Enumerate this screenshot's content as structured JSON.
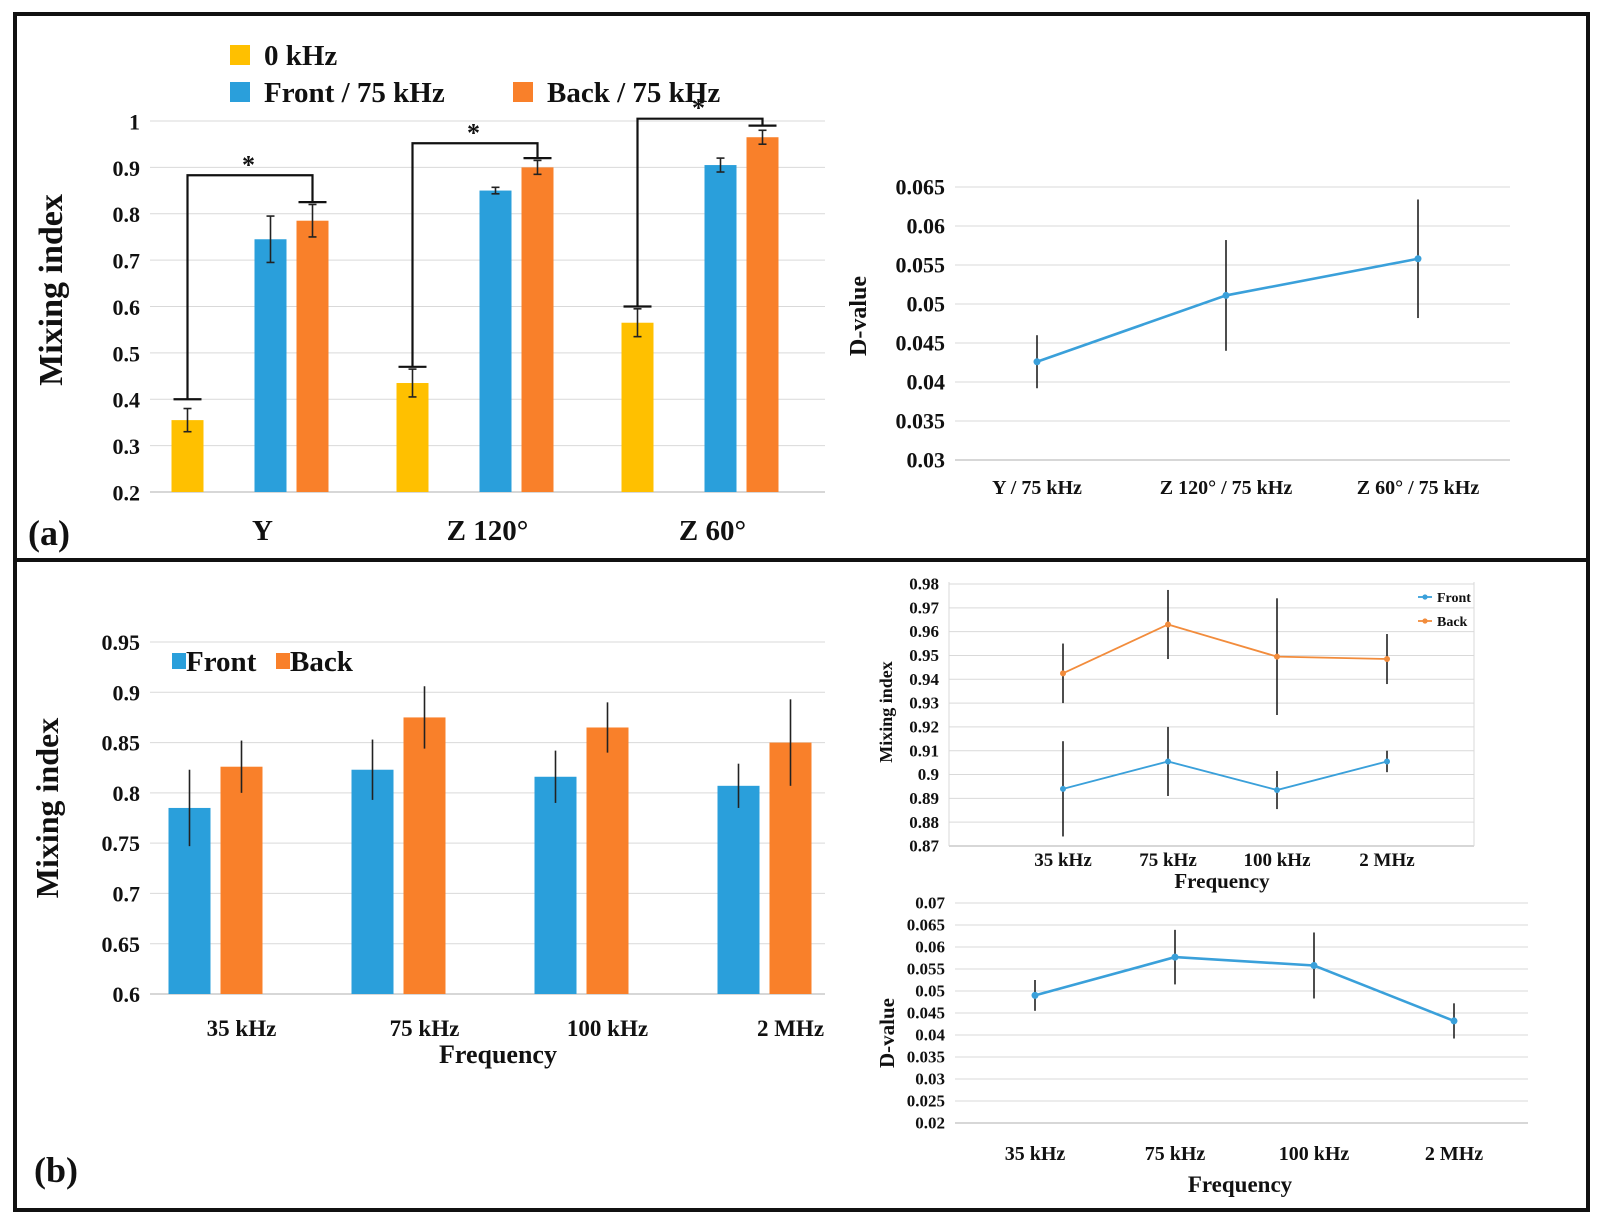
{
  "colors": {
    "yellow": "#FFC000",
    "blue": "#2A9FDB",
    "orange": "#F9802A",
    "line_blue": "#3AA0DA",
    "line_orange": "#F28C3C"
  },
  "panels": {
    "a": "(a)",
    "b": "(b)"
  },
  "chart_data": [
    {
      "id": "a1",
      "type": "bar",
      "ylabel": "Mixing index",
      "xlabel": "",
      "ylim": [
        0.2,
        1
      ],
      "yticks": [
        "0.2",
        "0.3",
        "0.4",
        "0.5",
        "0.6",
        "0.7",
        "0.8",
        "0.9",
        "1"
      ],
      "categories": [
        "Y",
        "Z 120°",
        "Z 60°"
      ],
      "series": [
        {
          "name": "0 kHz",
          "color": "#FFC000",
          "values": [
            0.355,
            0.435,
            0.565
          ],
          "errors": [
            0.025,
            0.03,
            0.03
          ]
        },
        {
          "name": "Front / 75 kHz",
          "color": "#2A9FDB",
          "values": [
            0.745,
            0.85,
            0.905
          ],
          "errors": [
            0.05,
            0.007,
            0.015
          ]
        },
        {
          "name": "Back / 75 kHz",
          "color": "#F9802A",
          "values": [
            0.785,
            0.9,
            0.965
          ],
          "errors": [
            0.035,
            0.015,
            0.015
          ]
        }
      ],
      "significance": [
        {
          "label": "*",
          "lower": 0.4,
          "upper": 0.825,
          "top": 0.883
        },
        {
          "label": "*",
          "lower": 0.47,
          "upper": 0.92,
          "top": 0.952
        },
        {
          "label": "*",
          "lower": 0.6,
          "upper": 0.99,
          "top": 1.005
        }
      ],
      "legend": "top-left"
    },
    {
      "id": "a2",
      "type": "line",
      "ylabel": "D-value",
      "xlabel": "",
      "ylim": [
        0.03,
        0.065
      ],
      "yticks": [
        "0.03",
        "0.035",
        "0.04",
        "0.045",
        "0.05",
        "0.055",
        "0.06",
        "0.065"
      ],
      "categories": [
        "Y / 75 kHz",
        "Z 120°  / 75 kHz",
        "Z 60°  / 75 kHz"
      ],
      "series": [
        {
          "name": "D-value",
          "color": "#3AA0DA",
          "values": [
            0.0426,
            0.0511,
            0.0558
          ],
          "errors": [
            0.0034,
            0.0071,
            0.0076
          ]
        }
      ]
    },
    {
      "id": "b1",
      "type": "bar",
      "ylabel": "Mixing index",
      "xlabel": "Frequency",
      "ylim": [
        0.6,
        0.95
      ],
      "yticks": [
        "0.6",
        "0.65",
        "0.7",
        "0.75",
        "0.8",
        "0.85",
        "0.9",
        "0.95"
      ],
      "categories": [
        "35 kHz",
        "75 kHz",
        "100 kHz",
        "2 MHz"
      ],
      "series": [
        {
          "name": "Front",
          "color": "#2A9FDB",
          "values": [
            0.785,
            0.823,
            0.816,
            0.807
          ],
          "errors": [
            0.038,
            0.03,
            0.026,
            0.022
          ]
        },
        {
          "name": "Back",
          "color": "#F9802A",
          "values": [
            0.826,
            0.875,
            0.865,
            0.85
          ],
          "errors": [
            0.026,
            0.031,
            0.025,
            0.043
          ]
        }
      ],
      "legend": "top-left"
    },
    {
      "id": "b2",
      "type": "line",
      "ylabel": "Mixing index",
      "xlabel": "Frequency",
      "ylim": [
        0.87,
        0.98
      ],
      "yticks": [
        "0.87",
        "0.88",
        "0.89",
        "0.9",
        "0.91",
        "0.92",
        "0.93",
        "0.94",
        "0.95",
        "0.96",
        "0.97",
        "0.98"
      ],
      "categories": [
        "35 kHz",
        "75 kHz",
        "100 kHz",
        "2 MHz"
      ],
      "series": [
        {
          "name": "Front",
          "color": "#3AA0DA",
          "values": [
            0.894,
            0.9055,
            0.8935,
            0.9055
          ],
          "errors": [
            0.02,
            0.0145,
            0.008,
            0.0045
          ]
        },
        {
          "name": "Back",
          "color": "#F28C3C",
          "values": [
            0.9425,
            0.963,
            0.9495,
            0.9485
          ],
          "errors": [
            0.0125,
            0.0145,
            0.0245,
            0.0105
          ]
        }
      ],
      "legend": "top-right"
    },
    {
      "id": "b3",
      "type": "line",
      "ylabel": "D-value",
      "xlabel": "Frequency",
      "ylim": [
        0.02,
        0.07
      ],
      "yticks": [
        "0.02",
        "0.025",
        "0.03",
        "0.035",
        "0.04",
        "0.045",
        "0.05",
        "0.055",
        "0.06",
        "0.065",
        "0.07"
      ],
      "categories": [
        "35 kHz",
        "75 kHz",
        "100 kHz",
        "2 MHz"
      ],
      "series": [
        {
          "name": "D-value",
          "color": "#3AA0DA",
          "values": [
            0.049,
            0.0577,
            0.0558,
            0.0432
          ],
          "errors": [
            0.0035,
            0.0062,
            0.0075,
            0.004
          ]
        }
      ]
    }
  ]
}
